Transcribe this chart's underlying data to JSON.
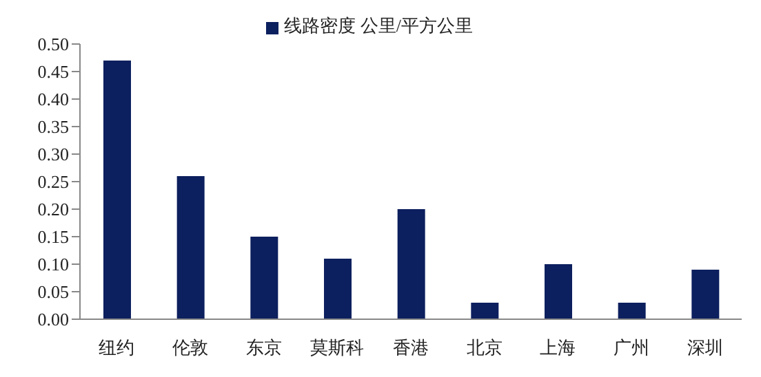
{
  "chart_data": {
    "type": "bar",
    "categories": [
      "纽约",
      "伦敦",
      "东京",
      "莫斯科",
      "香港",
      "北京",
      "上海",
      "广州",
      "深圳"
    ],
    "series": [
      {
        "name": "线路密度 公里/平方公里",
        "color": "#0c1f5e",
        "values": [
          0.47,
          0.26,
          0.15,
          0.11,
          0.2,
          0.03,
          0.1,
          0.03,
          0.09
        ]
      }
    ],
    "ylim": [
      0,
      0.5
    ],
    "yticks": [
      {
        "value": 0,
        "label": "0.00"
      },
      {
        "value": 0.05,
        "label": "0.05"
      },
      {
        "value": 0.1,
        "label": "0.10"
      },
      {
        "value": 0.15,
        "label": "0.15"
      },
      {
        "value": 0.2,
        "label": "0.20"
      },
      {
        "value": 0.25,
        "label": "0.25"
      },
      {
        "value": 0.3,
        "label": "0.30"
      },
      {
        "value": 0.35,
        "label": "0.35"
      },
      {
        "value": 0.4,
        "label": "0.40"
      },
      {
        "value": 0.45,
        "label": "0.45"
      },
      {
        "value": 0.5,
        "label": "0.50"
      }
    ],
    "grid": false,
    "legend": "top"
  }
}
